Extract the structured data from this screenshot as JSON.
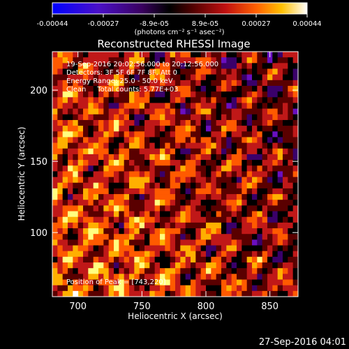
{
  "chart_data": {
    "type": "heatmap",
    "title": "Reconstructed RHESSI Image",
    "xlabel": "Heliocentric X (arcsec)",
    "ylabel": "Heliocentric Y (arcsec)",
    "xlim": [
      680,
      872
    ],
    "ylim": [
      55,
      227
    ],
    "x_ticks": [
      700,
      750,
      800,
      850
    ],
    "y_ticks": [
      100,
      150,
      200
    ],
    "grid": false,
    "colorbar": {
      "tick_labels": [
        "-0.00044",
        "-0.00027",
        "-8.9e-05",
        "8.9e-05",
        "0.00027",
        "0.00044"
      ],
      "range": [
        -0.00044,
        0.00044
      ],
      "units": "(photons cm⁻² s⁻¹ asec⁻²)",
      "colormap": [
        "#0000ff",
        "#6a0fc0",
        "#3a006a",
        "#000000",
        "#5a0000",
        "#c01818",
        "#ff5a00",
        "#ffb000",
        "#ffff80",
        "#ffffff"
      ]
    },
    "annotations": {
      "time": "19-Sep-2016 20:02:56.000 to 20:12:56.000",
      "detectors": "Detectors: 3F 5F 6F 7F 8F, Att 0",
      "energy": "Energy Range: 25.0 - 50.0 keV",
      "counts": "Clean     Total counts: 5.77E+03",
      "peak": "Position of Peak = [743,220]"
    },
    "pattern": {
      "description_free": true,
      "grid_cells_x": 48,
      "grid_cells_y": 43,
      "seed": 7
    }
  },
  "footer": {
    "timestamp": "27-Sep-2016 04:01"
  }
}
